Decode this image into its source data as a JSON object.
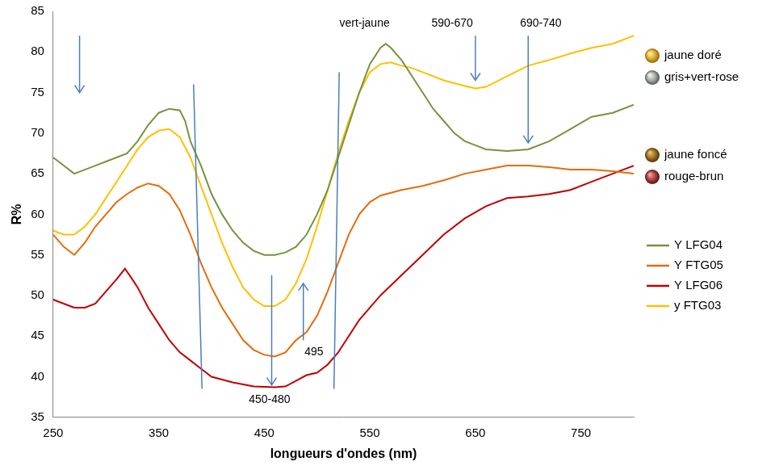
{
  "chart_data": {
    "type": "line",
    "x_label": "longueurs d'ondes (nm)",
    "y_label": "R%",
    "xlim": [
      250,
      800
    ],
    "xticks": [
      250,
      350,
      450,
      550,
      650,
      750
    ],
    "ylim": [
      35,
      85
    ],
    "yticks": [
      35,
      40,
      45,
      50,
      55,
      60,
      65,
      70,
      75,
      80,
      85
    ],
    "grid": false,
    "legend": "right",
    "series": [
      {
        "name": "Y LFG04",
        "color": "#77933c",
        "x": [
          250,
          260,
          270,
          280,
          290,
          300,
          310,
          320,
          330,
          340,
          350,
          360,
          370,
          375,
          380,
          390,
          400,
          410,
          420,
          430,
          440,
          450,
          460,
          470,
          480,
          490,
          500,
          510,
          520,
          530,
          540,
          550,
          560,
          565,
          570,
          580,
          590,
          600,
          610,
          620,
          630,
          640,
          650,
          660,
          680,
          700,
          720,
          740,
          760,
          780,
          800
        ],
        "values": [
          67,
          66,
          65,
          65.5,
          66,
          66.5,
          67,
          67.5,
          69,
          71,
          72.5,
          73,
          72.8,
          71.5,
          69,
          66,
          62.5,
          60,
          58,
          56.5,
          55.5,
          55,
          55,
          55.3,
          56,
          57.5,
          60,
          63,
          67,
          71,
          75,
          78.5,
          80.5,
          81,
          80.5,
          79,
          77,
          75,
          73,
          71.5,
          70,
          69,
          68.5,
          68,
          67.8,
          68,
          69,
          70.5,
          72,
          72.5,
          73.5
        ]
      },
      {
        "name": "Y FTG05",
        "color": "#e46c0a",
        "x": [
          250,
          260,
          270,
          280,
          290,
          300,
          310,
          320,
          330,
          340,
          350,
          360,
          370,
          380,
          390,
          400,
          410,
          420,
          430,
          440,
          450,
          460,
          470,
          480,
          490,
          500,
          510,
          520,
          530,
          540,
          550,
          560,
          580,
          600,
          620,
          640,
          660,
          680,
          700,
          720,
          740,
          760,
          780,
          800
        ],
        "values": [
          57.5,
          56,
          55,
          56.5,
          58.5,
          60,
          61.5,
          62.5,
          63.3,
          63.8,
          63.5,
          62.5,
          60.5,
          57.5,
          54,
          51,
          48.5,
          46.5,
          44.5,
          43.3,
          42.7,
          42.5,
          43,
          44.5,
          45.5,
          47.5,
          50.5,
          54,
          57.5,
          60,
          61.5,
          62.3,
          63,
          63.5,
          64.2,
          65,
          65.5,
          66,
          66,
          65.8,
          65.5,
          65.5,
          65.3,
          65
        ]
      },
      {
        "name": "Y LFG06",
        "color": "#c00000",
        "x": [
          250,
          260,
          270,
          280,
          290,
          300,
          310,
          318,
          325,
          330,
          340,
          350,
          360,
          370,
          380,
          390,
          400,
          420,
          440,
          460,
          470,
          480,
          490,
          500,
          510,
          520,
          530,
          540,
          560,
          580,
          600,
          620,
          640,
          660,
          680,
          700,
          720,
          740,
          760,
          780,
          800
        ],
        "values": [
          49.5,
          49,
          48.5,
          48.5,
          49,
          50.5,
          52,
          53.3,
          52,
          51,
          48.5,
          46.5,
          44.5,
          43,
          42,
          41,
          40,
          39.3,
          38.8,
          38.7,
          38.8,
          39.5,
          40.2,
          40.5,
          41.5,
          43,
          45,
          47,
          50,
          52.5,
          55,
          57.5,
          59.5,
          61,
          62,
          62.2,
          62.5,
          63,
          64,
          65,
          66
        ]
      },
      {
        "name": "y FTG03",
        "color": "#ffc000",
        "x": [
          250,
          260,
          270,
          280,
          290,
          300,
          310,
          320,
          330,
          340,
          350,
          360,
          370,
          380,
          390,
          400,
          410,
          420,
          430,
          440,
          450,
          460,
          470,
          480,
          490,
          500,
          510,
          520,
          530,
          540,
          550,
          560,
          570,
          580,
          590,
          600,
          620,
          640,
          650,
          660,
          680,
          700,
          720,
          740,
          760,
          780,
          800
        ],
        "values": [
          58,
          57.5,
          57.5,
          58.5,
          60,
          62,
          64,
          66,
          68,
          69.5,
          70.3,
          70.5,
          69.5,
          67,
          63.5,
          60,
          56.5,
          53.5,
          51,
          49.5,
          48.7,
          48.7,
          49.5,
          51.5,
          54.5,
          58.5,
          63,
          67.5,
          71.5,
          75,
          77.5,
          78.5,
          78.7,
          78.3,
          78,
          77.5,
          76.5,
          75.8,
          75.5,
          75.7,
          77,
          78.3,
          79,
          79.8,
          80.5,
          81,
          82
        ]
      }
    ],
    "annotations": [
      {
        "text": "vert-jaune",
        "x": 545,
        "y": 83.5
      },
      {
        "text": "590-670",
        "x": 628,
        "y": 83.5
      },
      {
        "text": "690-740",
        "x": 712,
        "y": 83.5
      },
      {
        "text": "495",
        "x": 497,
        "y": 43
      },
      {
        "text": "450-480",
        "x": 455,
        "y": 37.2
      }
    ],
    "arrows": [
      {
        "x": 275,
        "y_from": 82,
        "y_to": 75
      },
      {
        "x": 650,
        "y_from": 82,
        "y_to": 76.5
      },
      {
        "x": 700,
        "y_from": 82,
        "y_to": 68.8
      },
      {
        "x": 457,
        "y_from": 52.5,
        "y_to": 39
      },
      {
        "x": 487,
        "y_from": 44.5,
        "y_to": 51.5
      }
    ],
    "lines": [
      {
        "x_from": 383,
        "y_from": 76,
        "x_to": 391,
        "y_to": 38.5
      },
      {
        "x_from": 521,
        "y_from": 77.5,
        "x_to": 516,
        "y_to": 38.5
      }
    ],
    "side_labels": [
      "jaune doré",
      "gris+vert-rose",
      "jaune foncé",
      "rouge-brun"
    ]
  }
}
